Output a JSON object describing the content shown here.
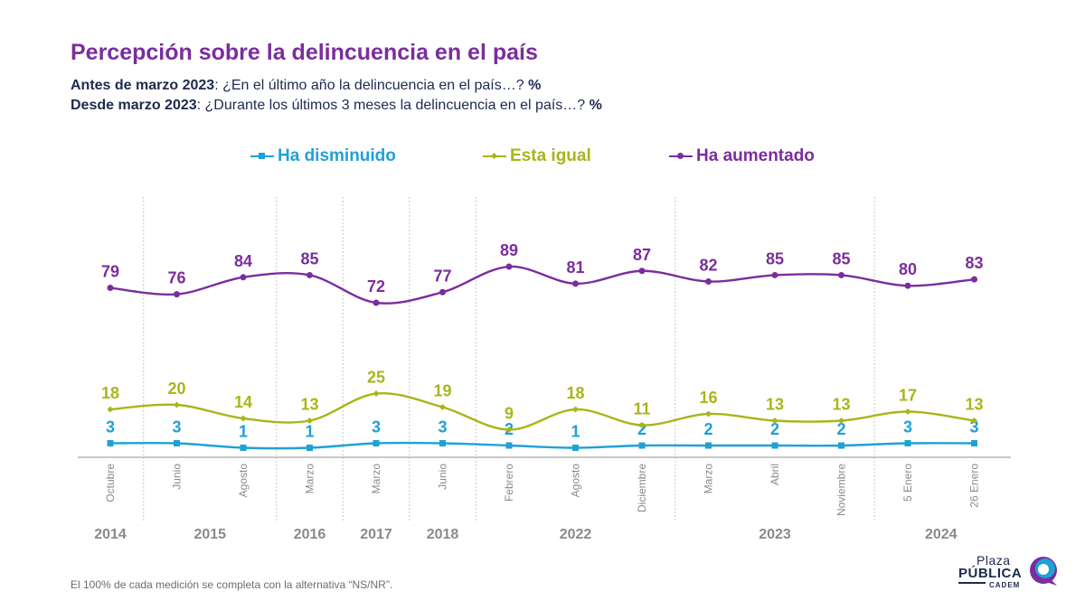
{
  "header": {
    "title": "Percepción sobre la delincuencia en el país",
    "sub1_bold": "Antes de marzo 2023",
    "sub1_text": ": ¿En el último año la delincuencia en el país…?",
    "sub1_pct": "%",
    "sub2_bold": "Desde marzo 2023",
    "sub2_text": ": ¿Durante los últimos 3 meses la delincuencia en el país…?",
    "sub2_pct": "%"
  },
  "colors": {
    "disminuido": "#1fa1d6",
    "igual": "#a9b519",
    "aumentado": "#7b2d9e",
    "title": "#7b2d9e",
    "text_dark": "#1d2a50",
    "axis_text": "#8a8a8a"
  },
  "chart_data": {
    "type": "line",
    "categories": [
      "Octubre",
      "Junio",
      "Agosto",
      "Marzo",
      "Marzo",
      "Junio",
      "Febrero",
      "Agosto",
      "Diciembre",
      "Marzo",
      "Abril",
      "Noviembre",
      "5 Enero",
      "26 Enero"
    ],
    "year_labels": [
      {
        "label": "2014",
        "index": 0
      },
      {
        "label": "2015",
        "index": 1.5
      },
      {
        "label": "2016",
        "index": 3
      },
      {
        "label": "2017",
        "index": 4
      },
      {
        "label": "2018",
        "index": 5
      },
      {
        "label": "2022",
        "index": 7
      },
      {
        "label": "2023",
        "index": 10
      },
      {
        "label": "2024",
        "index": 12.5
      }
    ],
    "year_dividers_after_index": [
      0,
      2,
      3,
      4,
      5,
      8,
      11
    ],
    "series": [
      {
        "name": "Ha disminuido",
        "key": "disminuido",
        "marker": "square",
        "values": [
          3,
          3,
          1,
          1,
          3,
          3,
          2,
          1,
          2,
          2,
          2,
          2,
          3,
          3
        ]
      },
      {
        "name": "Esta igual",
        "key": "igual",
        "marker": "diamond",
        "values": [
          18,
          20,
          14,
          13,
          25,
          19,
          9,
          18,
          11,
          16,
          13,
          13,
          17,
          13
        ]
      },
      {
        "name": "Ha aumentado",
        "key": "aumentado",
        "marker": "circle",
        "values": [
          79,
          76,
          84,
          85,
          72,
          77,
          89,
          81,
          87,
          82,
          85,
          85,
          80,
          83
        ]
      }
    ],
    "ylim": [
      0,
      100
    ],
    "grid": false,
    "legend_position": "top-center"
  },
  "footnote": "El 100% de cada medición se completa con la alternativa “NS/NR”.",
  "logo": {
    "line1": "Plaza",
    "line2": "PÚBLICA",
    "line3": "CADEM"
  }
}
